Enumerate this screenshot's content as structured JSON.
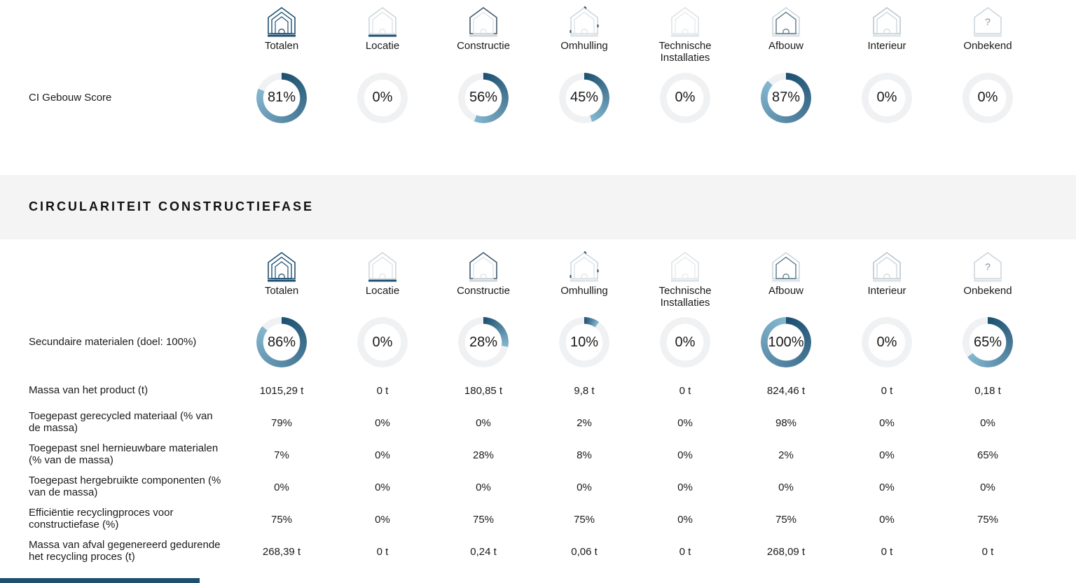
{
  "colors": {
    "accent_dark": "#1d4f70",
    "accent_light": "#85b7cf",
    "track": "#f0f1f3",
    "band_bg": "#f4f4f4",
    "footer_bar": "#1d4f6e"
  },
  "columns": [
    {
      "label": "Totalen",
      "icon": "totalen-house-icon",
      "variant": "totalen"
    },
    {
      "label": "Locatie",
      "icon": "locatie-house-icon",
      "variant": "locatie"
    },
    {
      "label": "Constructie",
      "icon": "constructie-house-icon",
      "variant": "constructie"
    },
    {
      "label": "Omhulling",
      "icon": "omhulling-house-icon",
      "variant": "omhulling"
    },
    {
      "label": "Technische Installaties",
      "icon": "technische-installaties-house-icon",
      "variant": "technische"
    },
    {
      "label": "Afbouw",
      "icon": "afbouw-house-icon",
      "variant": "afbouw"
    },
    {
      "label": "Interieur",
      "icon": "interieur-house-icon",
      "variant": "interieur"
    },
    {
      "label": "Onbekend",
      "icon": "onbekend-house-icon",
      "variant": "onbekend"
    }
  ],
  "score_section": {
    "row_label": "CI Gebouw Score",
    "values": [
      81,
      0,
      56,
      45,
      0,
      87,
      0,
      0
    ]
  },
  "construction_section": {
    "header": "CIRCULARITEIT CONSTRUCTIEFASE",
    "donut_row_label": "Secundaire materialen (doel: 100%)",
    "donut_values": [
      86,
      0,
      28,
      10,
      0,
      100,
      0,
      65
    ],
    "table_rows": [
      {
        "label": "Massa van het product (t)",
        "values": [
          "1015,29 t",
          "0 t",
          "180,85 t",
          "9,8 t",
          "0 t",
          "824,46 t",
          "0 t",
          "0,18 t"
        ]
      },
      {
        "label": "Toegepast gerecycled materiaal (% van de massa)",
        "values": [
          "79%",
          "0%",
          "0%",
          "2%",
          "0%",
          "98%",
          "0%",
          "0%"
        ]
      },
      {
        "label": "Toegepast snel hernieuwbare materialen (% van de massa)",
        "values": [
          "7%",
          "0%",
          "28%",
          "8%",
          "0%",
          "2%",
          "0%",
          "65%"
        ]
      },
      {
        "label": "Toegepast hergebruikte componenten (% van de massa)",
        "values": [
          "0%",
          "0%",
          "0%",
          "0%",
          "0%",
          "0%",
          "0%",
          "0%"
        ]
      },
      {
        "label": "Efficiëntie recyclingproces voor constructiefase (%)",
        "values": [
          "75%",
          "0%",
          "75%",
          "75%",
          "0%",
          "75%",
          "0%",
          "75%"
        ]
      },
      {
        "label": "Massa van afval gegenereerd gedurende het recycling proces (t)",
        "values": [
          "268,39 t",
          "0 t",
          "0,24 t",
          "0,06 t",
          "0 t",
          "268,09 t",
          "0 t",
          "0 t"
        ]
      }
    ]
  },
  "chart_data": [
    {
      "type": "donut-gauges",
      "title": "CI Gebouw Score",
      "categories": [
        "Totalen",
        "Locatie",
        "Constructie",
        "Omhulling",
        "Technische Installaties",
        "Afbouw",
        "Interieur",
        "Onbekend"
      ],
      "values": [
        81,
        0,
        56,
        45,
        0,
        87,
        0,
        0
      ],
      "unit": "%",
      "ylim": [
        0,
        100
      ],
      "legend_position": "none"
    },
    {
      "type": "donut-gauges",
      "title": "Secundaire materialen (doel: 100%)",
      "categories": [
        "Totalen",
        "Locatie",
        "Constructie",
        "Omhulling",
        "Technische Installaties",
        "Afbouw",
        "Interieur",
        "Onbekend"
      ],
      "values": [
        86,
        0,
        28,
        10,
        0,
        100,
        0,
        65
      ],
      "unit": "%",
      "ylim": [
        0,
        100
      ],
      "legend_position": "none"
    },
    {
      "type": "table",
      "title": "CIRCULARITEIT CONSTRUCTIEFASE",
      "columns": [
        "Totalen",
        "Locatie",
        "Constructie",
        "Omhulling",
        "Technische Installaties",
        "Afbouw",
        "Interieur",
        "Onbekend"
      ],
      "rows": [
        {
          "label": "Massa van het product (t)",
          "values": [
            "1015,29 t",
            "0 t",
            "180,85 t",
            "9,8 t",
            "0 t",
            "824,46 t",
            "0 t",
            "0,18 t"
          ]
        },
        {
          "label": "Toegepast gerecycled materiaal (% van de massa)",
          "values": [
            "79%",
            "0%",
            "0%",
            "2%",
            "0%",
            "98%",
            "0%",
            "0%"
          ]
        },
        {
          "label": "Toegepast snel hernieuwbare materialen (% van de massa)",
          "values": [
            "7%",
            "0%",
            "28%",
            "8%",
            "0%",
            "2%",
            "0%",
            "65%"
          ]
        },
        {
          "label": "Toegepast hergebruikte componenten (% van de massa)",
          "values": [
            "0%",
            "0%",
            "0%",
            "0%",
            "0%",
            "0%",
            "0%",
            "0%"
          ]
        },
        {
          "label": "Efficiëntie recyclingproces voor constructiefase (%)",
          "values": [
            "75%",
            "0%",
            "75%",
            "75%",
            "0%",
            "75%",
            "0%",
            "75%"
          ]
        },
        {
          "label": "Massa van afval gegenereerd gedurende het recycling proces (t)",
          "values": [
            "268,39 t",
            "0 t",
            "0,24 t",
            "0,06 t",
            "0 t",
            "268,09 t",
            "0 t",
            "0 t"
          ]
        }
      ]
    }
  ]
}
